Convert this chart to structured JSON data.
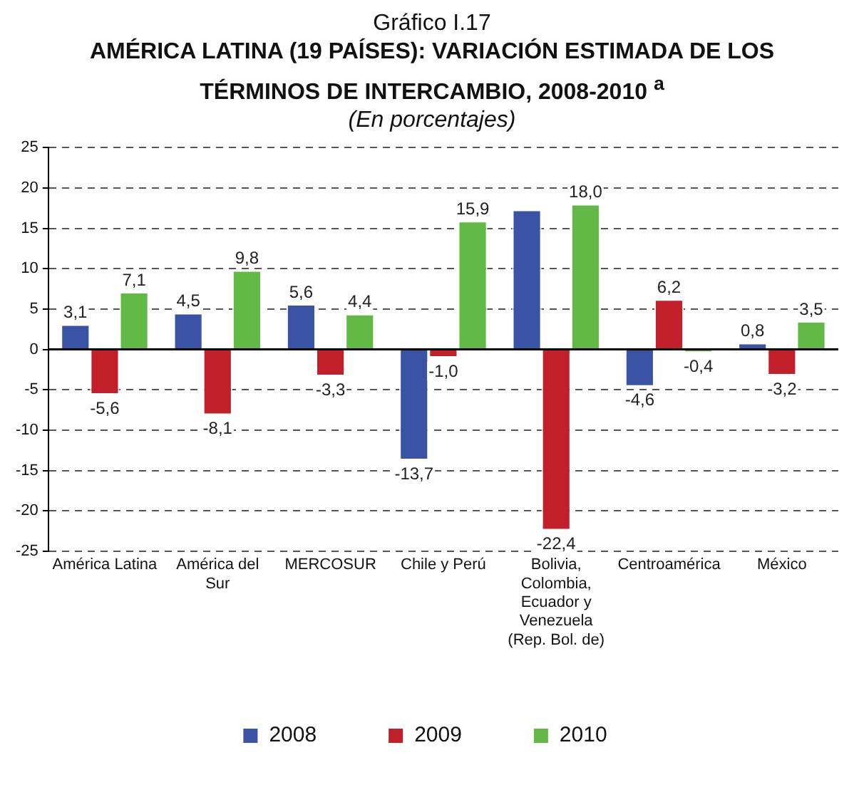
{
  "chart_data": {
    "type": "bar",
    "subtitle": "Gráfico I.17",
    "title": "AMÉRICA LATINA (19 PAÍSES): VARIACIÓN ESTIMADA DE LOS TÉRMINOS DE INTERCAMBIO, 2008-2010 $^{a}$",
    "ylabel": "(En porcentajes)",
    "categories": [
      "América Latina",
      "América del Sur",
      "MERCOSUR",
      "Chile y Perú",
      "Bolivia, Colombia, Ecuador y Venezuela (Rep. Bol. de)",
      "Centroamérica",
      "México"
    ],
    "series": [
      {
        "name": "2008",
        "color": "#3a53a4",
        "values": [
          3.1,
          4.5,
          5.6,
          -13.7,
          17.3,
          -4.6,
          0.8
        ],
        "value_labels": [
          "3,1",
          "4,5",
          "5,6",
          "-13,7",
          null,
          "-4,6",
          "0,8"
        ]
      },
      {
        "name": "2009",
        "color": "#c1202a",
        "values": [
          -5.6,
          -8.1,
          -3.3,
          -1.0,
          -22.4,
          6.2,
          -3.2
        ],
        "value_labels": [
          "-5,6",
          "-8,1",
          "-3,3",
          "-1,0",
          "-22,4",
          "6,2",
          "-3,2"
        ]
      },
      {
        "name": "2010",
        "color": "#62b946",
        "values": [
          7.1,
          9.8,
          4.4,
          15.9,
          18.0,
          -0.4,
          3.5
        ],
        "value_labels": [
          "7,1",
          "9,8",
          "4,4",
          "15,9",
          "18,0",
          "-0,4",
          "3,5"
        ]
      }
    ],
    "ylim": [
      -25,
      25
    ],
    "yticks": [
      -25,
      -20,
      -15,
      -10,
      -5,
      0,
      5,
      10,
      15,
      20,
      25
    ],
    "grid": "y",
    "legend": "bottom",
    "ref_lines": [
      {
        "axis": "y",
        "value": 0,
        "color": "#000000"
      }
    ]
  }
}
